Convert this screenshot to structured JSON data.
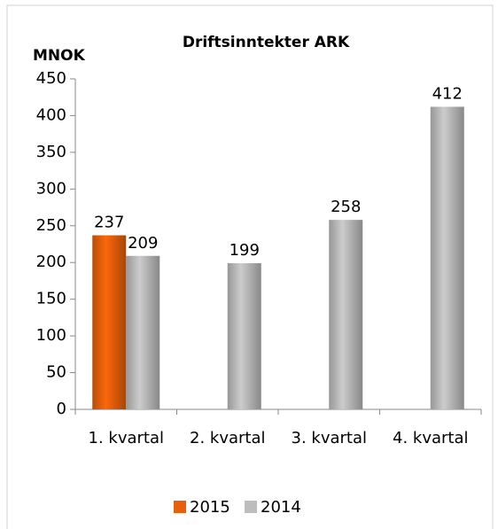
{
  "chart_data": {
    "type": "bar",
    "title": "Driftsinntekter ARK",
    "y_label": "MNOK",
    "categories": [
      "1. kvartal",
      "2. kvartal",
      "3. kvartal",
      "4. kvartal"
    ],
    "series": [
      {
        "name": "2015",
        "color": "#e8600a",
        "values": [
          237,
          null,
          null,
          null
        ]
      },
      {
        "name": "2014",
        "color": "#bdbdbd",
        "values": [
          209,
          199,
          258,
          412
        ]
      }
    ],
    "ylim": [
      0,
      450
    ],
    "yticks": [
      0,
      50,
      100,
      150,
      200,
      250,
      300,
      350,
      400,
      450
    ],
    "legend": "bottom"
  }
}
